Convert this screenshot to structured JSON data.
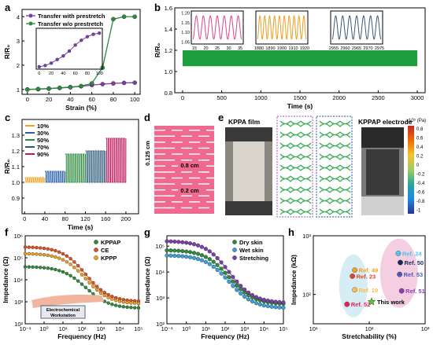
{
  "panels": {
    "a": {
      "label": "a",
      "xlabel": "Strain (%)",
      "ylabel": "R/R₀",
      "legend": [
        "Transfer with prestretch",
        "Transfer w/o prestretch"
      ],
      "colors": [
        "#7b3fa6",
        "#2e8b3e"
      ]
    },
    "b": {
      "label": "b",
      "xlabel": "Time (s)",
      "ylabel": "R/R₀",
      "color": "#1e9e3e",
      "insets": [
        {
          "color": "#e0458f",
          "ticks": [
            "15",
            "20",
            "25",
            "30",
            "35"
          ]
        },
        {
          "color": "#f0a020",
          "ticks": [
            "1880",
            "1890",
            "1900",
            "1910",
            "1920"
          ]
        },
        {
          "color": "#3a5a7a",
          "ticks": [
            "2955",
            "2960",
            "2965",
            "2970",
            "2975"
          ]
        }
      ]
    },
    "c": {
      "label": "c",
      "xlabel": "Time (s)",
      "ylabel": "R/R₀",
      "legend": [
        "10%",
        "30%",
        "50%",
        "70%",
        "90%"
      ],
      "colors": [
        "#f0a020",
        "#2b5fa8",
        "#2e8b3e",
        "#2c5a7a",
        "#c2185b"
      ]
    },
    "d": {
      "label": "d",
      "dims": [
        "0.125 cm",
        "0.8 cm",
        "0.2 cm"
      ],
      "color": "#ef6a8f"
    },
    "e": {
      "label": "e",
      "titles": [
        "KPPA film",
        "KPPAP electrode"
      ],
      "colorbar_unit": "x10⁵ (Pa)",
      "colorbar_ticks": [
        "0.8",
        "0.6",
        "0.4",
        "0.2",
        "0",
        "-0.2",
        "-0.4",
        "-0.6",
        "-0.8",
        "-1"
      ]
    },
    "f": {
      "label": "f",
      "xlabel": "Frequency (Hz)",
      "ylabel": "Impedance (Ω)",
      "legend": [
        "KPPAP",
        "CE",
        "KPPP"
      ],
      "colors": [
        "#2e8b3e",
        "#e05020",
        "#f0a020"
      ],
      "workstation": "Electrochemical Workstation"
    },
    "g": {
      "label": "g",
      "xlabel": "Frequency (Hz)",
      "ylabel": "Impedance (Ω)",
      "legend": [
        "Dry skin",
        "Wet skin",
        "Stretching"
      ],
      "colors": [
        "#2e8b3e",
        "#3aa0d8",
        "#7b3fa6"
      ]
    },
    "h": {
      "label": "h",
      "xlabel": "Stretchability (%)",
      "ylabel": "Impedance (kΩ)",
      "this_work": "This work"
    }
  },
  "chart_data": [
    {
      "type": "line",
      "panel": "a",
      "x": [
        0,
        10,
        20,
        30,
        40,
        50,
        60,
        70,
        80,
        90,
        100
      ],
      "series": [
        {
          "name": "Transfer with prestretch",
          "values": [
            1.0,
            1.01,
            1.03,
            1.06,
            1.09,
            1.13,
            1.18,
            1.22,
            1.25,
            1.27,
            1.28
          ]
        },
        {
          "name": "Transfer w/o prestretch",
          "values": [
            1.0,
            1.02,
            1.04,
            1.07,
            1.1,
            1.14,
            1.25,
            1.9,
            3.9,
            4.0,
            4.0
          ]
        }
      ],
      "inset": {
        "x": [
          0,
          10,
          20,
          30,
          40,
          50,
          60,
          70,
          80,
          90,
          100
        ],
        "values": [
          1.0,
          1.01,
          1.03,
          1.06,
          1.09,
          1.13,
          1.18,
          1.22,
          1.25,
          1.27,
          1.28
        ],
        "ylim": [
          1.0,
          1.3
        ]
      },
      "xlim": [
        0,
        100
      ],
      "ylim": [
        1,
        4.2
      ],
      "yticks": [
        1,
        2,
        3,
        4
      ],
      "xticks": [
        0,
        20,
        40,
        60,
        80,
        100
      ]
    },
    {
      "type": "line",
      "panel": "b",
      "xlim": [
        0,
        3000
      ],
      "ylim": [
        0.8,
        1.6
      ],
      "yticks": [
        0.8,
        1.0,
        1.2,
        1.4,
        1.6
      ],
      "xticks": [
        0,
        500,
        1000,
        1500,
        2000,
        2500,
        3000
      ],
      "band": [
        1.05,
        1.2
      ],
      "insets": [
        {
          "xlim": [
            15,
            35
          ],
          "ylim": [
            1.05,
            1.2
          ],
          "yticks": [
            1.05,
            1.1,
            1.15,
            1.2
          ],
          "cycles": 7
        },
        {
          "xlim": [
            1880,
            1920
          ],
          "ylim": [
            1.05,
            1.2
          ],
          "cycles": 10
        },
        {
          "xlim": [
            2955,
            2975
          ],
          "ylim": [
            1.05,
            1.2
          ],
          "cycles": 7
        }
      ]
    },
    {
      "type": "line",
      "panel": "c",
      "xlim": [
        0,
        225
      ],
      "ylim": [
        0.8,
        1.4
      ],
      "yticks": [
        0.9,
        1.0,
        1.1,
        1.2,
        1.3
      ],
      "xticks": [
        0,
        40,
        80,
        120,
        160,
        200
      ],
      "series": [
        {
          "name": "10%",
          "start": 0,
          "end": 40,
          "low": 1.0,
          "high": 1.03
        },
        {
          "name": "30%",
          "start": 40,
          "end": 80,
          "low": 1.0,
          "high": 1.07
        },
        {
          "name": "50%",
          "start": 80,
          "end": 120,
          "low": 1.0,
          "high": 1.18
        },
        {
          "name": "70%",
          "start": 120,
          "end": 160,
          "low": 1.0,
          "high": 1.2
        },
        {
          "name": "90%",
          "start": 160,
          "end": 200,
          "low": 1.0,
          "high": 1.28
        }
      ]
    },
    {
      "type": "line",
      "panel": "f",
      "xlim_log": [
        -1,
        5
      ],
      "ylim_log": [
        2,
        6
      ],
      "yticks": [
        "10²",
        "10³",
        "10⁴",
        "10⁵",
        "10⁶"
      ],
      "xticks": [
        "10⁻¹",
        "10⁰",
        "10¹",
        "10²",
        "10³",
        "10⁴",
        "10⁵"
      ],
      "series": [
        {
          "name": "KPPAP",
          "plateau": 4.6,
          "tail": 2.7
        },
        {
          "name": "CE",
          "plateau": 5.5,
          "tail": 3.0
        },
        {
          "name": "KPPP",
          "plateau": 5.2,
          "tail": 2.9
        }
      ]
    },
    {
      "type": "line",
      "panel": "g",
      "xlim_log": [
        -1,
        5
      ],
      "ylim_log": [
        2,
        5.4
      ],
      "yticks": [
        "10²",
        "10³",
        "10⁴",
        "10⁵"
      ],
      "xticks": [
        "10⁻¹",
        "10⁰",
        "10¹",
        "10²",
        "10³",
        "10⁴",
        "10⁵"
      ],
      "series": [
        {
          "name": "Dry skin",
          "plateau": 4.85,
          "tail": 2.75
        },
        {
          "name": "Wet skin",
          "plateau": 4.65,
          "tail": 2.6
        },
        {
          "name": "Stretching",
          "plateau": 5.2,
          "tail": 2.8
        }
      ]
    },
    {
      "type": "scatter",
      "panel": "h",
      "xlim_log": [
        1,
        3
      ],
      "ylim_log": [
        1.5,
        3
      ],
      "xticks": [
        "10¹",
        "10²",
        "10³"
      ],
      "yticks": [
        "10²",
        "10³"
      ],
      "points": [
        {
          "name": "Ref. 24",
          "x": 330,
          "y": 500,
          "color": "#4fc3e8"
        },
        {
          "name": "Ref. 49",
          "x": 55,
          "y": 260,
          "color": "#f0a020"
        },
        {
          "name": "Ref. 50",
          "x": 360,
          "y": 350,
          "color": "#1a2a5a"
        },
        {
          "name": "Ref. 23",
          "x": 50,
          "y": 205,
          "color": "#e0452b"
        },
        {
          "name": "Ref. 53",
          "x": 350,
          "y": 220,
          "color": "#4a5ab0"
        },
        {
          "name": "Ref. 19",
          "x": 55,
          "y": 120,
          "color": "#f5c04a"
        },
        {
          "name": "Ref. 51",
          "x": 380,
          "y": 115,
          "color": "#8a40b0"
        },
        {
          "name": "Ref. 52",
          "x": 40,
          "y": 68,
          "color": "#e8205a"
        },
        {
          "name": "This work",
          "x": 110,
          "y": 75,
          "color": "#5cbf3a"
        }
      ]
    }
  ]
}
